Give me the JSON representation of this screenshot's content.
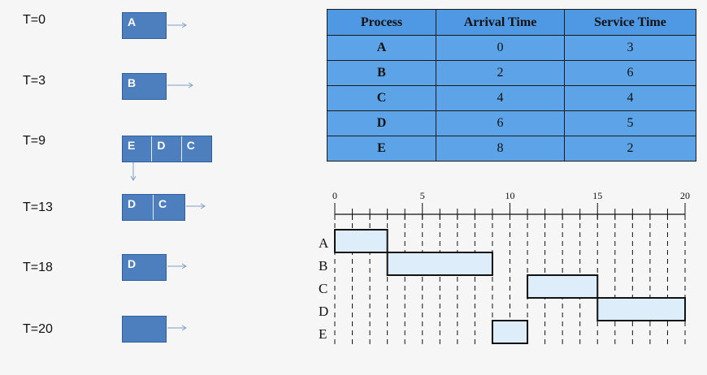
{
  "queue_timeline": [
    {
      "time_label": "T=0",
      "queue": [
        "A"
      ]
    },
    {
      "time_label": "T=3",
      "queue": [
        "B"
      ]
    },
    {
      "time_label": "T=9",
      "queue": [
        "E",
        "D",
        "C"
      ]
    },
    {
      "time_label": "T=13",
      "queue": [
        "D",
        "C"
      ]
    },
    {
      "time_label": "T=18",
      "queue": [
        "D"
      ]
    },
    {
      "time_label": "T=20",
      "queue": []
    }
  ],
  "process_table": {
    "headers": [
      "Process",
      "Arrival Time",
      "Service Time"
    ],
    "rows": [
      [
        "A",
        "0",
        "3"
      ],
      [
        "B",
        "2",
        "6"
      ],
      [
        "C",
        "4",
        "4"
      ],
      [
        "D",
        "6",
        "5"
      ],
      [
        "E",
        "8",
        "2"
      ]
    ]
  },
  "gantt": {
    "axis_ticks": [
      "0",
      "5",
      "10",
      "15",
      "20"
    ],
    "xlim": [
      0,
      20
    ],
    "processes": [
      "A",
      "B",
      "C",
      "D",
      "E"
    ],
    "segments": [
      {
        "process": "A",
        "start": 0,
        "end": 3
      },
      {
        "process": "B",
        "start": 3,
        "end": 9
      },
      {
        "process": "C",
        "start": 11,
        "end": 15
      },
      {
        "process": "D",
        "start": 15,
        "end": 20
      },
      {
        "process": "E",
        "start": 9,
        "end": 11
      }
    ]
  },
  "colors": {
    "queue_box": "#4d7fbf",
    "table_fill": "#5da3e8",
    "bar_fill": "#ddeefa",
    "arrow": "#7f9fc6"
  }
}
